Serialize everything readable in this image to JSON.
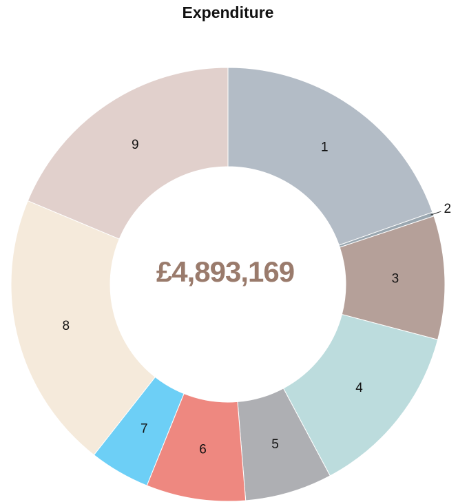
{
  "chart_data": {
    "type": "donut",
    "title": "Expenditure",
    "center_label": "£4,893,169",
    "categories": [
      "1",
      "2",
      "3",
      "4",
      "5",
      "6",
      "7",
      "8",
      "9"
    ],
    "values": [
      19.6,
      0.3,
      9.2,
      13.1,
      6.5,
      7.4,
      4.5,
      20.7,
      18.7
    ],
    "colors": [
      "#b3bcc6",
      "#9aa7b0",
      "#b5a099",
      "#bcdcdd",
      "#aeafb3",
      "#ee8880",
      "#6dcff6",
      "#f5eadb",
      "#e1d0cc"
    ]
  }
}
